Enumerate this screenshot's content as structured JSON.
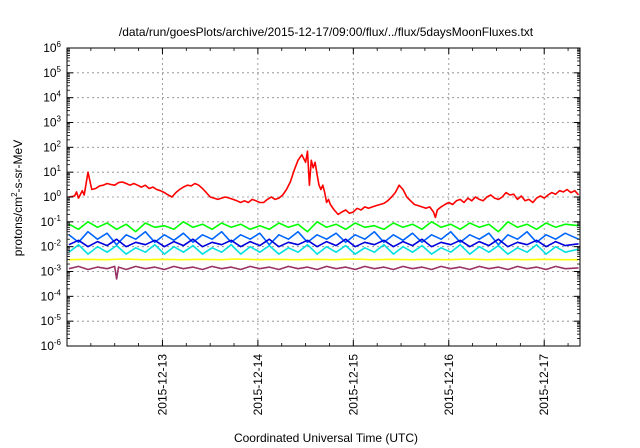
{
  "chart_data": {
    "type": "line",
    "title": "/data/run/goesPlots/archive/2015-12-17/09:00/flux/../flux/5daysMoonFluxes.txt",
    "xlabel": "Coordinated Universal Time (UTC)",
    "ylabel_parts": {
      "base": "protons/cm",
      "sup": "2",
      "rest": "-s-sr-MeV"
    },
    "y_scale": "log",
    "ylim_exponents": [
      -6,
      6
    ],
    "ytick_exponents": [
      -6,
      -5,
      -4,
      -3,
      -2,
      -1,
      0,
      1,
      2,
      3,
      4,
      5,
      6
    ],
    "ytick_base": "10",
    "x_range_days": [
      "2015-12-12 00:30",
      "2015-12-17 09:00"
    ],
    "x_ticks": [
      "2015-12-13",
      "2015-12-14",
      "2015-12-15",
      "2015-12-16",
      "2015-12-17"
    ],
    "grid": true,
    "legend": "none",
    "series": [
      {
        "color": "#ff0000",
        "x": [
          12.02,
          12.08,
          12.1,
          12.12,
          12.16,
          12.18,
          12.22,
          12.26,
          12.3,
          12.34,
          12.38,
          12.42,
          12.46,
          12.5,
          12.54,
          12.58,
          12.62,
          12.66,
          12.7,
          12.74,
          12.78,
          12.82,
          12.86,
          12.9,
          12.94,
          12.98,
          13.02,
          13.06,
          13.1,
          13.14,
          13.18,
          13.22,
          13.26,
          13.3,
          13.34,
          13.38,
          13.42,
          13.46,
          13.5,
          13.54,
          13.58,
          13.62,
          13.66,
          13.7,
          13.74,
          13.78,
          13.82,
          13.86,
          13.9,
          13.94,
          13.98,
          14.02,
          14.06,
          14.1,
          14.14,
          14.18,
          14.22,
          14.26,
          14.3,
          14.34,
          14.38,
          14.42,
          14.46,
          14.5,
          14.52,
          14.54,
          14.56,
          14.58,
          14.6,
          14.62,
          14.64,
          14.66,
          14.68,
          14.7,
          14.72,
          14.74,
          14.76,
          14.8,
          14.84,
          14.88,
          14.92,
          14.96,
          15.0,
          15.04,
          15.08,
          15.12,
          15.16,
          15.2,
          15.24,
          15.28,
          15.32,
          15.36,
          15.4,
          15.44,
          15.48,
          15.52,
          15.56,
          15.6,
          15.64,
          15.68,
          15.72,
          15.76,
          15.8,
          15.84,
          15.86,
          15.88,
          15.92,
          15.96,
          16.0,
          16.04,
          16.08,
          16.12,
          16.16,
          16.2,
          16.24,
          16.28,
          16.32,
          16.36,
          16.4,
          16.44,
          16.48,
          16.52,
          16.56,
          16.6,
          16.64,
          16.68,
          16.72,
          16.76,
          16.8,
          16.84,
          16.88,
          16.92,
          16.96,
          17.0,
          17.04,
          17.08,
          17.12,
          17.16,
          17.2,
          17.24,
          17.28,
          17.32,
          17.36
        ],
        "y": [
          1.0,
          1.1,
          1.6,
          0.9,
          1.8,
          1.2,
          10.0,
          2.0,
          2.2,
          2.8,
          3.0,
          3.5,
          3.2,
          3.0,
          3.8,
          4.0,
          3.5,
          3.0,
          3.5,
          3.0,
          2.5,
          3.0,
          2.2,
          2.5,
          2.0,
          1.8,
          1.5,
          1.2,
          1.0,
          1.5,
          2.0,
          2.5,
          3.0,
          2.8,
          3.5,
          3.0,
          2.2,
          1.5,
          1.0,
          0.9,
          0.8,
          0.9,
          1.0,
          0.9,
          0.8,
          0.7,
          0.6,
          0.7,
          0.6,
          0.8,
          0.7,
          0.6,
          0.6,
          0.8,
          1.0,
          0.8,
          0.9,
          1.2,
          2.0,
          4.0,
          12.0,
          30.0,
          50.0,
          25.0,
          70.0,
          3.0,
          30.0,
          15.0,
          25.0,
          8.0,
          3.0,
          2.0,
          3.0,
          1.5,
          0.6,
          0.8,
          0.5,
          0.3,
          0.2,
          0.25,
          0.3,
          0.22,
          0.25,
          0.35,
          0.3,
          0.4,
          0.35,
          0.4,
          0.45,
          0.5,
          0.55,
          0.7,
          1.0,
          1.5,
          3.0,
          2.0,
          1.0,
          0.7,
          0.5,
          0.45,
          0.4,
          0.35,
          0.4,
          0.25,
          0.15,
          0.3,
          0.4,
          0.5,
          0.6,
          0.5,
          0.7,
          0.8,
          0.6,
          0.9,
          0.7,
          1.0,
          0.8,
          0.7,
          1.0,
          1.2,
          0.9,
          0.8,
          1.0,
          1.5,
          1.2,
          1.3,
          0.8,
          1.1,
          0.7,
          0.8,
          0.6,
          0.9,
          1.1,
          0.9,
          1.2,
          1.5,
          1.3,
          1.8,
          1.6,
          2.0,
          1.5,
          1.8,
          1.2
        ]
      },
      {
        "color": "#00ff00",
        "x": [
          12.02,
          12.12,
          12.22,
          12.32,
          12.42,
          12.52,
          12.62,
          12.72,
          12.82,
          12.92,
          13.02,
          13.12,
          13.22,
          13.32,
          13.42,
          13.52,
          13.62,
          13.72,
          13.82,
          13.92,
          14.02,
          14.12,
          14.22,
          14.32,
          14.42,
          14.52,
          14.62,
          14.72,
          14.82,
          14.92,
          15.02,
          15.12,
          15.22,
          15.32,
          15.42,
          15.52,
          15.62,
          15.72,
          15.82,
          15.92,
          16.02,
          16.12,
          16.22,
          16.32,
          16.42,
          16.52,
          16.62,
          16.72,
          16.82,
          16.92,
          17.02,
          17.12,
          17.22,
          17.36
        ],
        "y": [
          0.08,
          0.05,
          0.1,
          0.06,
          0.09,
          0.05,
          0.08,
          0.04,
          0.09,
          0.06,
          0.07,
          0.05,
          0.1,
          0.06,
          0.08,
          0.05,
          0.09,
          0.06,
          0.08,
          0.05,
          0.07,
          0.05,
          0.09,
          0.06,
          0.08,
          0.04,
          0.1,
          0.06,
          0.08,
          0.05,
          0.09,
          0.06,
          0.07,
          0.05,
          0.09,
          0.06,
          0.08,
          0.05,
          0.1,
          0.06,
          0.08,
          0.05,
          0.09,
          0.06,
          0.08,
          0.04,
          0.1,
          0.06,
          0.08,
          0.05,
          0.09,
          0.06,
          0.08,
          0.07
        ]
      },
      {
        "color": "#00e0e0",
        "x": [
          12.02,
          12.12,
          12.22,
          12.32,
          12.42,
          12.52,
          12.62,
          12.72,
          12.82,
          12.92,
          13.02,
          13.12,
          13.22,
          13.32,
          13.42,
          13.52,
          13.62,
          13.72,
          13.82,
          13.92,
          14.02,
          14.12,
          14.22,
          14.32,
          14.42,
          14.52,
          14.62,
          14.72,
          14.82,
          14.92,
          15.02,
          15.12,
          15.22,
          15.32,
          15.42,
          15.52,
          15.62,
          15.72,
          15.82,
          15.92,
          16.02,
          16.12,
          16.22,
          16.32,
          16.42,
          16.52,
          16.62,
          16.72,
          16.82,
          16.92,
          17.02,
          17.12,
          17.22,
          17.36
        ],
        "y": [
          0.006,
          0.012,
          0.005,
          0.01,
          0.006,
          0.011,
          0.005,
          0.009,
          0.006,
          0.012,
          0.005,
          0.01,
          0.006,
          0.011,
          0.005,
          0.009,
          0.006,
          0.012,
          0.005,
          0.01,
          0.006,
          0.011,
          0.005,
          0.009,
          0.006,
          0.012,
          0.005,
          0.01,
          0.006,
          0.011,
          0.005,
          0.009,
          0.006,
          0.012,
          0.005,
          0.01,
          0.006,
          0.011,
          0.005,
          0.009,
          0.006,
          0.012,
          0.005,
          0.01,
          0.006,
          0.011,
          0.005,
          0.009,
          0.006,
          0.012,
          0.005,
          0.01,
          0.006,
          0.008
        ]
      },
      {
        "color": "#0066ff",
        "x": [
          12.02,
          12.12,
          12.22,
          12.32,
          12.42,
          12.52,
          12.62,
          12.72,
          12.82,
          12.92,
          13.02,
          13.12,
          13.22,
          13.32,
          13.42,
          13.52,
          13.62,
          13.72,
          13.82,
          13.92,
          14.02,
          14.12,
          14.22,
          14.32,
          14.42,
          14.52,
          14.62,
          14.72,
          14.82,
          14.92,
          15.02,
          15.12,
          15.22,
          15.32,
          15.42,
          15.52,
          15.62,
          15.72,
          15.82,
          15.92,
          16.02,
          16.12,
          16.22,
          16.32,
          16.42,
          16.52,
          16.62,
          16.72,
          16.82,
          16.92,
          17.02,
          17.12,
          17.22,
          17.36
        ],
        "y": [
          0.03,
          0.015,
          0.04,
          0.02,
          0.035,
          0.012,
          0.03,
          0.02,
          0.04,
          0.015,
          0.03,
          0.018,
          0.035,
          0.015,
          0.03,
          0.02,
          0.04,
          0.015,
          0.03,
          0.02,
          0.035,
          0.012,
          0.03,
          0.02,
          0.04,
          0.015,
          0.03,
          0.02,
          0.035,
          0.015,
          0.03,
          0.02,
          0.04,
          0.015,
          0.03,
          0.018,
          0.035,
          0.015,
          0.03,
          0.02,
          0.04,
          0.015,
          0.03,
          0.02,
          0.035,
          0.012,
          0.03,
          0.02,
          0.04,
          0.015,
          0.03,
          0.02,
          0.035,
          0.02
        ]
      },
      {
        "color": "#0000dd",
        "x": [
          12.02,
          12.12,
          12.22,
          12.32,
          12.42,
          12.52,
          12.62,
          12.72,
          12.82,
          12.92,
          13.02,
          13.12,
          13.22,
          13.32,
          13.42,
          13.52,
          13.62,
          13.72,
          13.82,
          13.92,
          14.02,
          14.12,
          14.22,
          14.32,
          14.42,
          14.52,
          14.62,
          14.72,
          14.82,
          14.92,
          15.02,
          15.12,
          15.22,
          15.32,
          15.42,
          15.52,
          15.62,
          15.72,
          15.82,
          15.92,
          16.02,
          16.12,
          16.22,
          16.32,
          16.42,
          16.52,
          16.62,
          16.72,
          16.82,
          16.92,
          17.02,
          17.12,
          17.22,
          17.36
        ],
        "y": [
          0.012,
          0.018,
          0.01,
          0.016,
          0.011,
          0.02,
          0.01,
          0.015,
          0.012,
          0.018,
          0.01,
          0.016,
          0.011,
          0.02,
          0.01,
          0.015,
          0.012,
          0.018,
          0.01,
          0.016,
          0.011,
          0.02,
          0.01,
          0.015,
          0.012,
          0.018,
          0.01,
          0.016,
          0.011,
          0.02,
          0.01,
          0.015,
          0.012,
          0.018,
          0.01,
          0.016,
          0.011,
          0.02,
          0.01,
          0.015,
          0.012,
          0.018,
          0.01,
          0.016,
          0.011,
          0.02,
          0.01,
          0.015,
          0.012,
          0.018,
          0.01,
          0.016,
          0.011,
          0.013
        ]
      },
      {
        "color": "#ffff00",
        "x": [
          12.02,
          12.2,
          12.4,
          12.6,
          12.8,
          13.0,
          13.2,
          13.4,
          13.6,
          13.8,
          14.0,
          14.2,
          14.4,
          14.6,
          14.8,
          15.0,
          15.2,
          15.4,
          15.6,
          15.8,
          16.0,
          16.2,
          16.4,
          16.6,
          16.8,
          17.0,
          17.2,
          17.36
        ],
        "y": [
          0.003,
          0.0031,
          0.003,
          0.0032,
          0.003,
          0.0031,
          0.003,
          0.0031,
          0.003,
          0.0032,
          0.003,
          0.0031,
          0.003,
          0.0031,
          0.003,
          0.0032,
          0.003,
          0.0031,
          0.003,
          0.0031,
          0.003,
          0.0032,
          0.003,
          0.0031,
          0.003,
          0.0031,
          0.003,
          0.003
        ]
      },
      {
        "color": "#993366",
        "x": [
          12.02,
          12.12,
          12.22,
          12.32,
          12.42,
          12.5,
          12.52,
          12.54,
          12.62,
          12.72,
          12.82,
          12.92,
          13.02,
          13.12,
          13.22,
          13.32,
          13.42,
          13.52,
          13.62,
          13.72,
          13.82,
          13.92,
          14.02,
          14.12,
          14.22,
          14.32,
          14.42,
          14.52,
          14.62,
          14.72,
          14.82,
          14.92,
          15.02,
          15.12,
          15.22,
          15.32,
          15.42,
          15.52,
          15.62,
          15.72,
          15.82,
          15.92,
          16.02,
          16.12,
          16.22,
          16.32,
          16.42,
          16.52,
          16.62,
          16.72,
          16.82,
          16.92,
          17.02,
          17.12,
          17.22,
          17.36
        ],
        "y": [
          0.0013,
          0.0016,
          0.0012,
          0.0015,
          0.0013,
          0.0016,
          0.0005,
          0.0015,
          0.0012,
          0.0016,
          0.0013,
          0.0015,
          0.0012,
          0.0016,
          0.0013,
          0.0015,
          0.0012,
          0.0016,
          0.0013,
          0.0015,
          0.0012,
          0.0016,
          0.0013,
          0.0015,
          0.0012,
          0.0016,
          0.0013,
          0.0015,
          0.0012,
          0.0016,
          0.0013,
          0.0015,
          0.0012,
          0.0016,
          0.0013,
          0.0015,
          0.0012,
          0.0016,
          0.0013,
          0.0015,
          0.0012,
          0.0016,
          0.0013,
          0.0015,
          0.0012,
          0.0016,
          0.0013,
          0.0015,
          0.0012,
          0.0016,
          0.0013,
          0.0015,
          0.0012,
          0.0016,
          0.0013,
          0.0014
        ]
      }
    ]
  }
}
